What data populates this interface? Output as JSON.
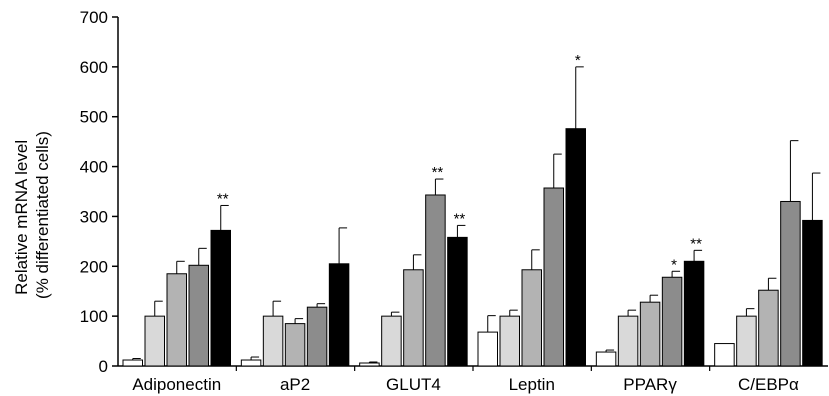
{
  "chart_data": {
    "type": "bar",
    "ylabel_line1": "Relative mRNA level",
    "ylabel_line2": "(% differentiated cells)",
    "ylim": [
      0,
      700
    ],
    "yticks": [
      0,
      100,
      200,
      300,
      400,
      500,
      600,
      700
    ],
    "ytick_labels": [
      "0",
      "100",
      "200",
      "300",
      "400",
      "500",
      "600",
      "700"
    ],
    "categories": [
      "Adiponectin",
      "aP2",
      "GLUT4",
      "Leptin",
      "PPARγ",
      "C/EBPα"
    ],
    "series_colors": [
      "#ffffff",
      "#d9d9d9",
      "#b3b3b3",
      "#8c8c8c",
      "#000000"
    ],
    "series": [
      {
        "values": [
          12,
          12,
          6,
          68,
          28,
          45
        ],
        "errors": [
          3,
          6,
          2,
          33,
          4,
          0
        ]
      },
      {
        "values": [
          100,
          100,
          100,
          100,
          100,
          100
        ],
        "errors": [
          30,
          30,
          8,
          12,
          12,
          15
        ]
      },
      {
        "values": [
          185,
          85,
          193,
          193,
          128,
          152
        ],
        "errors": [
          25,
          10,
          30,
          40,
          14,
          24
        ]
      },
      {
        "values": [
          202,
          118,
          343,
          357,
          178,
          330
        ],
        "errors": [
          34,
          7,
          32,
          68,
          12,
          122
        ]
      },
      {
        "values": [
          272,
          205,
          258,
          476,
          210,
          292
        ],
        "errors": [
          50,
          72,
          24,
          124,
          22,
          95
        ]
      }
    ],
    "significance": [
      {
        "category": "Adiponectin",
        "series": 4,
        "label": "**"
      },
      {
        "category": "GLUT4",
        "series": 3,
        "label": "**"
      },
      {
        "category": "GLUT4",
        "series": 4,
        "label": "**"
      },
      {
        "category": "Leptin",
        "series": 4,
        "label": "*"
      },
      {
        "category": "PPARγ",
        "series": 3,
        "label": "*"
      },
      {
        "category": "PPARγ",
        "series": 4,
        "label": "**"
      }
    ]
  }
}
